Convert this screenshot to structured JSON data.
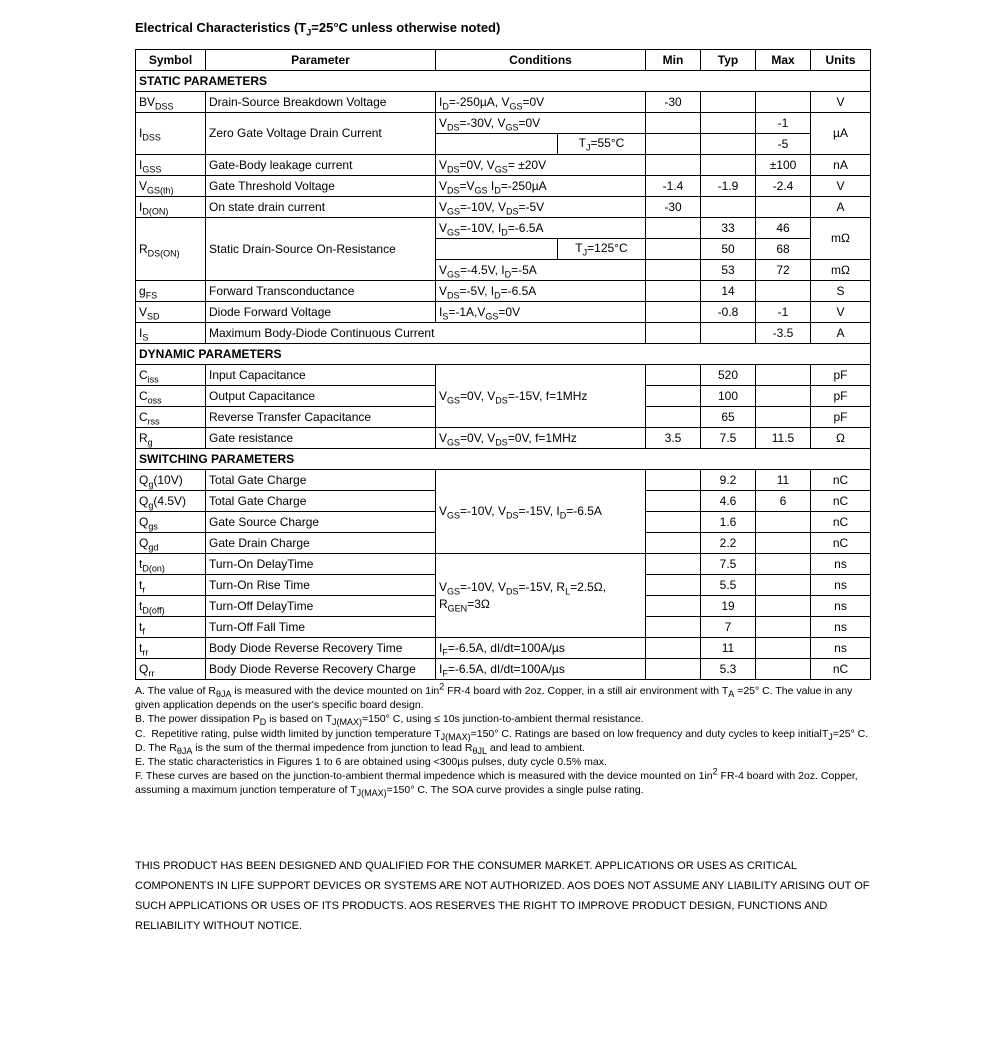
{
  "title": "Electrical Characteristics (T_J=25°C unless otherwise noted)",
  "columns": {
    "symbol": "Symbol",
    "parameter": "Parameter",
    "conditions": "Conditions",
    "min": "Min",
    "typ": "Typ",
    "max": "Max",
    "units": "Units"
  },
  "col_widths": {
    "symbol": 70,
    "parameter": 230,
    "conditions": 210,
    "min": 55,
    "typ": 55,
    "max": 55,
    "units": 60
  },
  "sections": [
    {
      "title": "STATIC PARAMETERS",
      "rows": [
        {
          "sym": "BV<sub>DSS</sub>",
          "param": "Drain-Source Breakdown Voltage",
          "cond": "I<sub>D</sub>=-250µA, V<sub>GS</sub>=0V",
          "min": "-30",
          "typ": "",
          "max": "",
          "units": "V"
        },
        {
          "sym": "I<sub>DSS</sub>",
          "param": "Zero Gate Voltage Drain Current",
          "sym_rs": 2,
          "param_rs": 2,
          "units": "µA",
          "units_rs": 2,
          "cond": "V<sub>DS</sub>=-30V, V<sub>GS</sub>=0V",
          "min": "",
          "typ": "",
          "max": "-1"
        },
        {
          "cond_split": {
            "left": "",
            "right": "T<sub>J</sub>=55°C"
          },
          "min": "",
          "typ": "",
          "max": "-5"
        },
        {
          "sym": "I<sub>GSS</sub>",
          "param": "Gate-Body leakage current",
          "cond": "V<sub>DS</sub>=0V, V<sub>GS</sub>= ±20V",
          "min": "",
          "typ": "",
          "max": "±100",
          "units": "nA"
        },
        {
          "sym": "V<sub>GS(th)</sub>",
          "param": "Gate Threshold Voltage",
          "cond": "V<sub>DS</sub>=V<sub>GS</sub> I<sub>D</sub>=-250µA",
          "min": "-1.4",
          "typ": "-1.9",
          "max": "-2.4",
          "units": "V"
        },
        {
          "sym": "I<sub>D(ON)</sub>",
          "param": "On state drain current",
          "cond": "V<sub>GS</sub>=-10V, V<sub>DS</sub>=-5V",
          "min": "-30",
          "typ": "",
          "max": "",
          "units": "A"
        },
        {
          "sym": "R<sub>DS(ON)</sub>",
          "param": "Static Drain-Source On-Resistance",
          "sym_rs": 3,
          "param_rs": 3,
          "cond": "V<sub>GS</sub>=-10V, I<sub>D</sub>=-6.5A",
          "min": "",
          "typ": "33",
          "max": "46",
          "units": "mΩ",
          "units_rs": 2
        },
        {
          "cond_split": {
            "left": "",
            "right": "T<sub>J</sub>=125°C"
          },
          "min": "",
          "typ": "50",
          "max": "68"
        },
        {
          "cond": "V<sub>GS</sub>=-4.5V, I<sub>D</sub>=-5A",
          "min": "",
          "typ": "53",
          "max": "72",
          "units": "mΩ"
        },
        {
          "sym": "g<sub>FS</sub>",
          "param": "Forward Transconductance",
          "cond": "V<sub>DS</sub>=-5V, I<sub>D</sub>=-6.5A",
          "min": "",
          "typ": "14",
          "max": "",
          "units": "S"
        },
        {
          "sym": "V<sub>SD</sub>",
          "param": "Diode Forward Voltage",
          "cond": "I<sub>S</sub>=-1A,V<sub>GS</sub>=0V",
          "min": "",
          "typ": "-0.8",
          "max": "-1",
          "units": "V"
        },
        {
          "sym": "I<sub>S</sub>",
          "param": "Maximum Body-Diode Continuous Current",
          "param_cs": 2,
          "min": "",
          "typ": "",
          "max": "-3.5",
          "units": "A"
        }
      ]
    },
    {
      "title": "DYNAMIC PARAMETERS",
      "rows": [
        {
          "sym": "C<sub>iss</sub>",
          "param": "Input Capacitance",
          "cond": "",
          "cond_rs": 3,
          "cond_mid": "V<sub>GS</sub>=0V, V<sub>DS</sub>=-15V, f=1MHz",
          "min": "",
          "typ": "520",
          "max": "",
          "units": "pF"
        },
        {
          "sym": "C<sub>oss</sub>",
          "param": "Output Capacitance",
          "min": "",
          "typ": "100",
          "max": "",
          "units": "pF"
        },
        {
          "sym": "C<sub>rss</sub>",
          "param": "Reverse Transfer Capacitance",
          "min": "",
          "typ": "65",
          "max": "",
          "units": "pF"
        },
        {
          "sym": "R<sub>g</sub>",
          "param": "Gate resistance",
          "cond": "V<sub>GS</sub>=0V, V<sub>DS</sub>=0V, f=1MHz",
          "min": "3.5",
          "typ": "7.5",
          "max": "11.5",
          "units": "Ω"
        }
      ]
    },
    {
      "title": "SWITCHING PARAMETERS",
      "rows": [
        {
          "sym": "Q<sub>g</sub>(10V)",
          "param": "Total Gate Charge",
          "cond": "",
          "cond_rs": 4,
          "cond_mid": "V<sub>GS</sub>=-10V, V<sub>DS</sub>=-15V, I<sub>D</sub>=-6.5A",
          "min": "",
          "typ": "9.2",
          "max": "11",
          "units": "nC"
        },
        {
          "sym": "Q<sub>g</sub>(4.5V)",
          "param": "Total Gate Charge",
          "min": "",
          "typ": "4.6",
          "max": "6",
          "units": "nC"
        },
        {
          "sym": "Q<sub>gs</sub>",
          "param": "Gate Source Charge",
          "min": "",
          "typ": "1.6",
          "max": "",
          "units": "nC"
        },
        {
          "sym": "Q<sub>gd</sub>",
          "param": "Gate Drain Charge",
          "min": "",
          "typ": "2.2",
          "max": "",
          "units": "nC"
        },
        {
          "sym": "t<sub>D(on)</sub>",
          "param": "Turn-On DelayTime",
          "cond": "",
          "cond_rs": 4,
          "cond_mid": "V<sub>GS</sub>=-10V, V<sub>DS</sub>=-15V, R<sub>L</sub>=2.5Ω, R<sub>GEN</sub>=3Ω",
          "min": "",
          "typ": "7.5",
          "max": "",
          "units": "ns"
        },
        {
          "sym": "t<sub>r</sub>",
          "param": "Turn-On Rise Time",
          "min": "",
          "typ": "5.5",
          "max": "",
          "units": "ns"
        },
        {
          "sym": "t<sub>D(off)</sub>",
          "param": "Turn-Off DelayTime",
          "min": "",
          "typ": "19",
          "max": "",
          "units": "ns"
        },
        {
          "sym": "t<sub>f</sub>",
          "param": "Turn-Off Fall Time",
          "min": "",
          "typ": "7",
          "max": "",
          "units": "ns"
        },
        {
          "sym": "t<sub>rr</sub>",
          "param": "Body Diode Reverse Recovery Time",
          "cond": "I<sub>F</sub>=-6.5A, dI/dt=100A/µs",
          "min": "",
          "typ": "11",
          "max": "",
          "units": "ns"
        },
        {
          "sym": "Q<sub>rr</sub>",
          "param": "Body Diode Reverse Recovery Charge",
          "cond": "I<sub>F</sub>=-6.5A, dI/dt=100A/µs",
          "min": "",
          "typ": "5.3",
          "max": "",
          "units": "nC"
        }
      ]
    }
  ],
  "notes": [
    "A. The value of R<sub>θJA</sub> is measured with the device mounted on 1in<sup>2</sup> FR-4 board with 2oz. Copper, in a still air environment with T<sub>A</sub> =25°&nbsp;C. The value in any given application depends on the user's specific board design.",
    "B. The power dissipation P<sub>D</sub> is based on T<sub>J(MAX)</sub>=150°&nbsp;C, using ≤ 10s junction-to-ambient thermal resistance.",
    "C.&nbsp;&nbsp;Repetitive rating, pulse width limited by junction temperature T<sub>J(MAX)</sub>=150°&nbsp;C. Ratings are based on low frequency and duty cycles to keep initialT<sub>J</sub>=25°&nbsp;C.",
    "D. The R<sub>θJA</sub> is the sum of the thermal impedence from junction to lead R<sub>θJL</sub> and lead to ambient.",
    "E. The static characteristics in Figures 1 to 6 are obtained using &lt;300µs pulses, duty cycle 0.5% max.",
    "F. These curves are based on the junction-to-ambient thermal impedence which is measured with the device mounted on 1in<sup>2</sup>&nbsp;FR-4 board with 2oz. Copper, assuming a maximum junction temperature of T<sub>J(MAX)</sub>=150°&nbsp;C. The SOA curve provides a single pulse rating."
  ],
  "disclaimer": "THIS PRODUCT HAS BEEN DESIGNED AND QUALIFIED FOR THE CONSUMER MARKET. APPLICATIONS OR USES AS CRITICAL COMPONENTS IN LIFE SUPPORT DEVICES OR SYSTEMS ARE NOT AUTHORIZED. AOS DOES NOT ASSUME ANY LIABILITY ARISING OUT OF SUCH APPLICATIONS OR USES OF ITS PRODUCTS.  AOS RESERVES THE RIGHT TO IMPROVE PRODUCT DESIGN, FUNCTIONS AND RELIABILITY WITHOUT NOTICE."
}
